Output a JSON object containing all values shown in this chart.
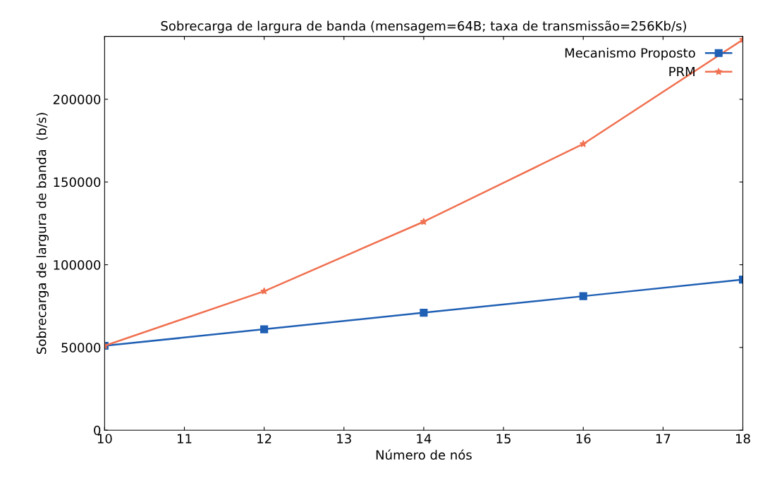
{
  "chart_data": {
    "type": "line",
    "title": "Sobrecarga de largura de banda (mensagem=64B; taxa de transmissão=256Kb/s)",
    "xlabel": "Número de nós",
    "ylabel": "Sobrecarga de largura de banda  (b/s)",
    "x": [
      10,
      12,
      14,
      16,
      18
    ],
    "series": [
      {
        "name": "Mecanismo Proposto",
        "color": "#1f5fb4",
        "marker": "square",
        "values": [
          51000,
          61000,
          71000,
          81000,
          91000
        ]
      },
      {
        "name": "PRM",
        "color": "#f07050",
        "marker": "star",
        "values": [
          51000,
          84000,
          126000,
          173000,
          236000
        ]
      }
    ],
    "xlim": [
      10,
      18
    ],
    "xticks": [
      10,
      11,
      12,
      13,
      14,
      15,
      16,
      17,
      18
    ],
    "ylim": [
      0,
      238000
    ],
    "yticks": [
      0,
      50000,
      100000,
      150000,
      200000
    ],
    "grid": false,
    "legend": "top right",
    "line_style": "solid"
  }
}
